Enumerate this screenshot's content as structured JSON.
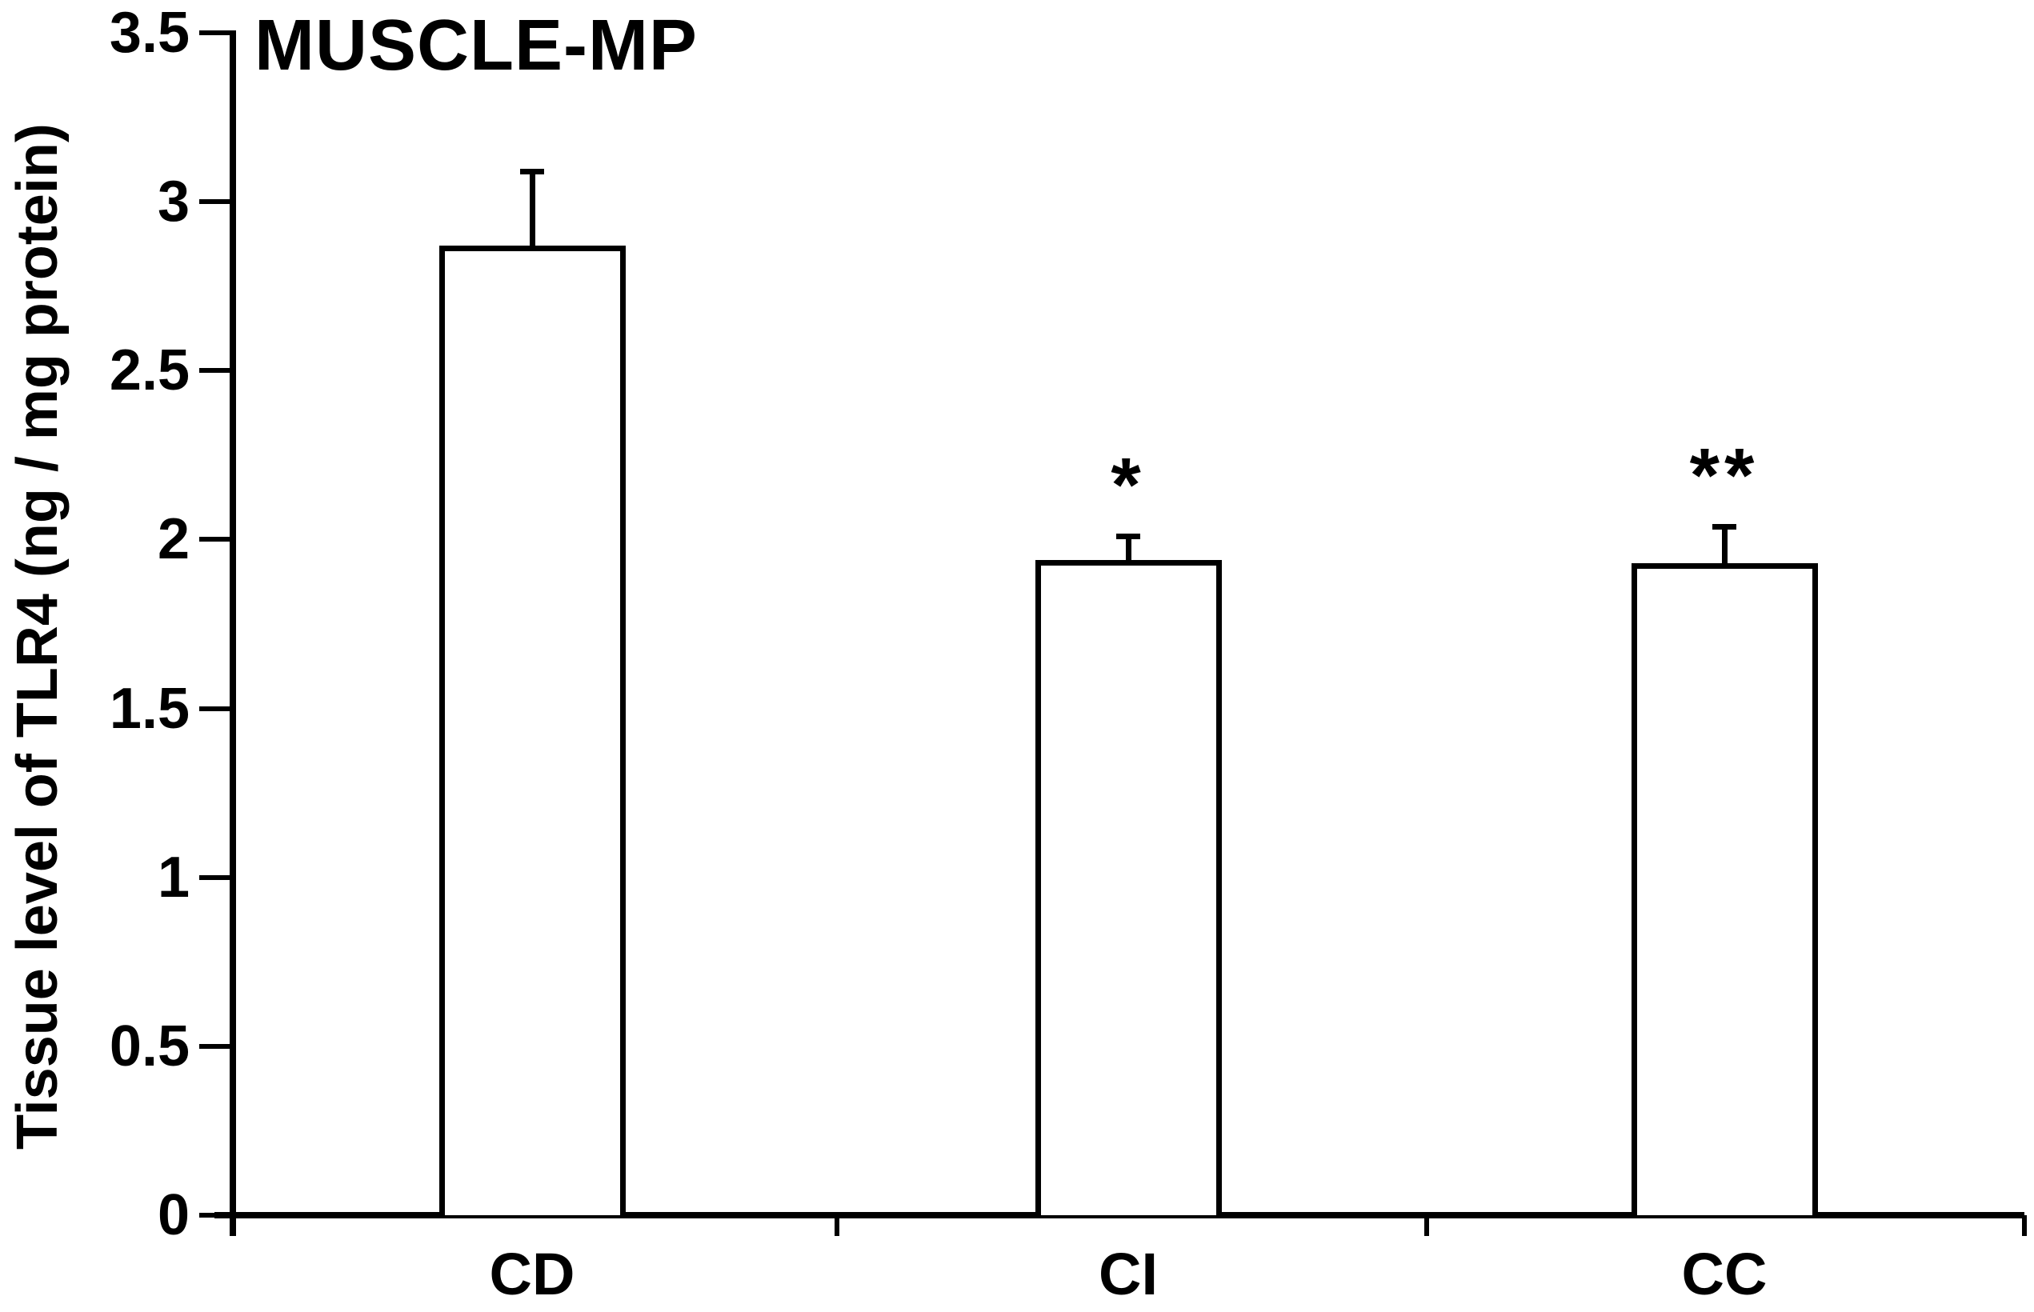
{
  "figure": {
    "title": "MUSCLE-MP"
  },
  "chart_data": {
    "type": "bar",
    "title": "MUSCLE-MP",
    "categories": [
      "CD",
      "CI",
      "CC"
    ],
    "values": [
      2.87,
      1.94,
      1.93
    ],
    "errors": [
      0.22,
      0.07,
      0.11
    ],
    "annotations": [
      "",
      "*",
      "**"
    ],
    "xlabel": "",
    "ylabel": "Tissue level of TLR4 (ng / mg protein)",
    "ylim": [
      0,
      3.5
    ],
    "yticks": [
      0,
      0.5,
      1,
      1.5,
      2,
      2.5,
      3,
      3.5
    ],
    "ytick_labels": [
      "0",
      "0.5",
      "1",
      "1.5",
      "2",
      "2.5",
      "3",
      "3.5"
    ],
    "grid": false,
    "legend": false,
    "bar_fill": "#ffffff",
    "bar_border": "#000000",
    "axis_color": "#000000"
  }
}
